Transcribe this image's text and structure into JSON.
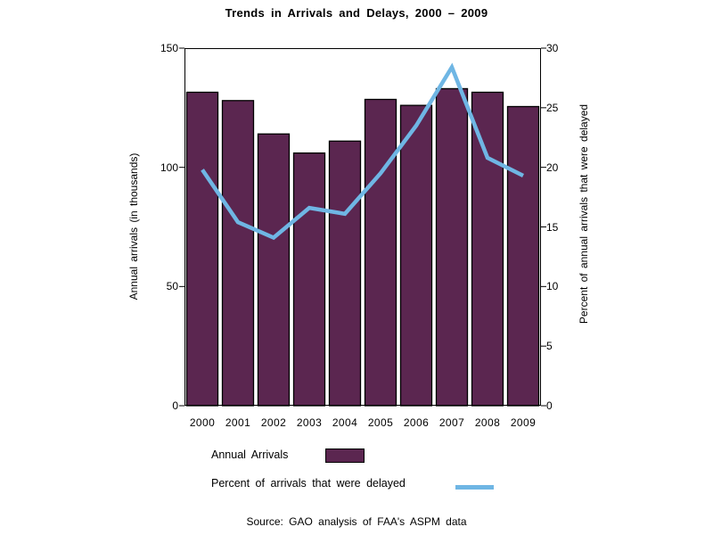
{
  "title": "Trends in Arrivals and Delays, 2000 – 2009",
  "source": "Source: GAO analysis of FAA's ASPM data",
  "left_axis": {
    "label": "Annual arrivals (in thousands)",
    "ticks": [
      0,
      50,
      100,
      150
    ],
    "max": 150
  },
  "right_axis": {
    "label": "Percent of annual arrivals that were delayed",
    "ticks": [
      0,
      5,
      10,
      15,
      20,
      25,
      30
    ],
    "max": 30
  },
  "legend": [
    {
      "label": "Annual Arrivals",
      "type": "bar"
    },
    {
      "label": "Percent of arrivals that were delayed",
      "type": "line"
    }
  ],
  "colors": {
    "bar_fill": "#5B2650",
    "bar_border": "#000000",
    "line": "#6FB6E4",
    "text": "#000000",
    "background": "#FFFFFF"
  },
  "chart_data": {
    "type": "bar",
    "categories": [
      "2000",
      "2001",
      "2002",
      "2003",
      "2004",
      "2005",
      "2006",
      "2007",
      "2008",
      "2009"
    ],
    "series": [
      {
        "name": "Annual Arrivals",
        "type": "bar",
        "axis": "left",
        "values": [
          131.5,
          128,
          114,
          106,
          111,
          128.5,
          126,
          133,
          131.5,
          125.5
        ]
      },
      {
        "name": "Percent of arrivals that were delayed",
        "type": "line",
        "axis": "right",
        "values": [
          19.8,
          15.4,
          14.1,
          16.6,
          16.1,
          19.5,
          23.5,
          28.4,
          20.8,
          19.3
        ]
      }
    ],
    "title": "Trends in Arrivals and Delays, 2000 – 2009",
    "xlabel": "",
    "ylabel_left": "Annual arrivals (in thousands)",
    "ylabel_right": "Percent of annual arrivals that were delayed",
    "ylim_left": [
      0,
      150
    ],
    "ylim_right": [
      0,
      30
    ],
    "grid": false,
    "legend_position": "bottom"
  }
}
